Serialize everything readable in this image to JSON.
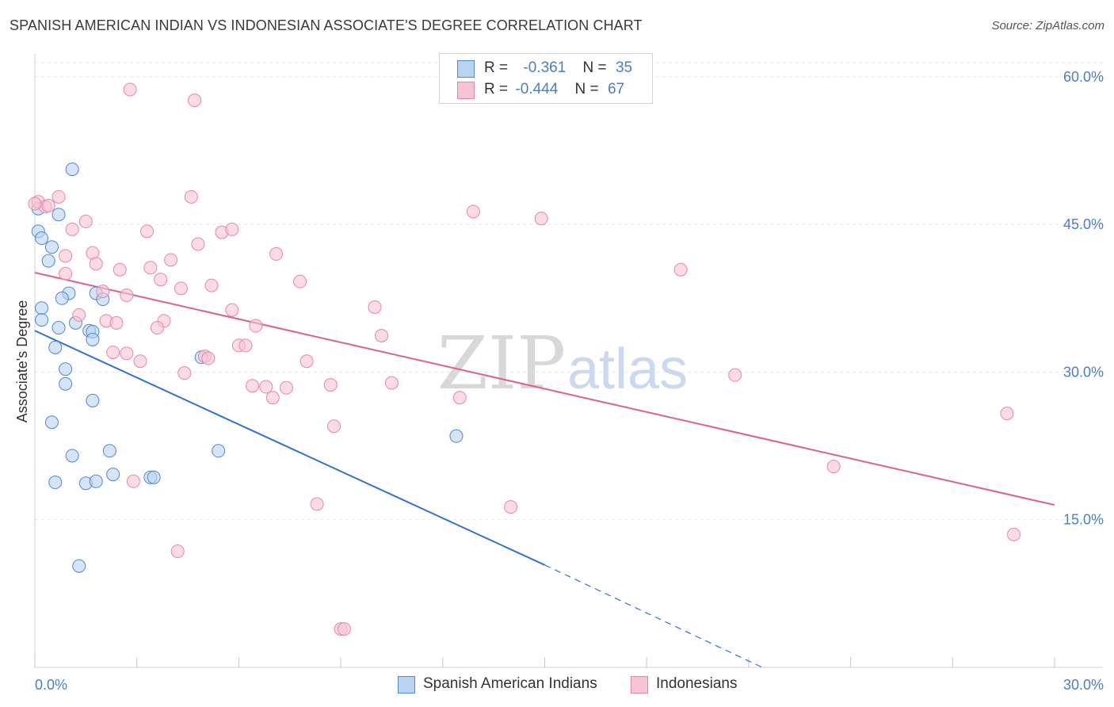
{
  "title": "SPANISH AMERICAN INDIAN VS INDONESIAN ASSOCIATE'S DEGREE CORRELATION CHART",
  "source": "Source: ZipAtlas.com",
  "watermark": {
    "zip": "ZIP",
    "atlas": "atlas"
  },
  "legend_top": [
    {
      "r_label": "R =",
      "r_value": "-0.361",
      "n_label": "N =",
      "n_value": "35"
    },
    {
      "r_label": "R =",
      "r_value": "-0.444",
      "n_label": "N =",
      "n_value": "67"
    }
  ],
  "colors": {
    "blue_fill": "#b9d3f2",
    "blue_stroke": "#4f8ad6",
    "blue_line": "#2f74d0",
    "pink_fill": "#f8c3d3",
    "pink_stroke": "#e987a8",
    "pink_line": "#e0608c",
    "grid": "#e6e6e6",
    "tick_text": "#4a7fc8"
  },
  "chart_data": {
    "type": "scatter",
    "xlabel": "",
    "ylabel": "Associate's Degree",
    "xlim": [
      0,
      30
    ],
    "ylim": [
      0,
      62
    ],
    "x_tick_labels": [
      "0.0%",
      "30.0%"
    ],
    "y_ticks": [
      15,
      30,
      45,
      60
    ],
    "y_tick_labels": [
      "15.0%",
      "30.0%",
      "45.0%",
      "60.0%"
    ],
    "legend_position": "top-center",
    "grid": true,
    "series": [
      {
        "name": "Spanish American Indians",
        "color": "blue",
        "points": [
          [
            1.1,
            50.6
          ],
          [
            0.1,
            46.6
          ],
          [
            0.7,
            46.0
          ],
          [
            0.1,
            44.3
          ],
          [
            0.2,
            43.6
          ],
          [
            0.5,
            42.7
          ],
          [
            0.4,
            41.3
          ],
          [
            1.0,
            38.0
          ],
          [
            1.8,
            38.0
          ],
          [
            0.8,
            37.5
          ],
          [
            2.0,
            37.4
          ],
          [
            0.2,
            36.5
          ],
          [
            0.2,
            35.3
          ],
          [
            1.2,
            35.0
          ],
          [
            0.7,
            34.5
          ],
          [
            1.6,
            34.2
          ],
          [
            1.7,
            34.1
          ],
          [
            1.7,
            33.3
          ],
          [
            0.6,
            32.5
          ],
          [
            4.9,
            31.5
          ],
          [
            0.9,
            30.3
          ],
          [
            0.9,
            28.8
          ],
          [
            1.7,
            27.1
          ],
          [
            0.5,
            24.9
          ],
          [
            12.4,
            23.5
          ],
          [
            2.2,
            22.0
          ],
          [
            5.4,
            22.0
          ],
          [
            1.1,
            21.5
          ],
          [
            2.3,
            19.6
          ],
          [
            3.4,
            19.3
          ],
          [
            3.5,
            19.3
          ],
          [
            0.6,
            18.8
          ],
          [
            1.5,
            18.7
          ],
          [
            1.8,
            18.9
          ],
          [
            1.3,
            10.3
          ]
        ],
        "trend": {
          "x": [
            0,
            15
          ],
          "y": [
            34.2,
            10.4
          ]
        },
        "trend_extension": {
          "x": [
            15,
            21.4
          ],
          "y": [
            10.4,
            0.0
          ]
        }
      },
      {
        "name": "Indonesians",
        "color": "pink",
        "points": [
          [
            2.8,
            58.7
          ],
          [
            4.7,
            57.6
          ],
          [
            0.1,
            47.3
          ],
          [
            4.6,
            47.8
          ],
          [
            0.3,
            46.8
          ],
          [
            0.7,
            47.8
          ],
          [
            0.4,
            46.9
          ],
          [
            12.9,
            46.3
          ],
          [
            14.9,
            45.6
          ],
          [
            1.5,
            45.3
          ],
          [
            1.1,
            44.5
          ],
          [
            3.3,
            44.3
          ],
          [
            5.5,
            44.2
          ],
          [
            5.8,
            44.5
          ],
          [
            4.8,
            43.0
          ],
          [
            7.1,
            42.0
          ],
          [
            0.9,
            41.8
          ],
          [
            1.7,
            42.1
          ],
          [
            4.0,
            41.4
          ],
          [
            1.8,
            41.0
          ],
          [
            3.4,
            40.6
          ],
          [
            2.5,
            40.4
          ],
          [
            19.0,
            40.4
          ],
          [
            0.9,
            40.0
          ],
          [
            3.7,
            39.4
          ],
          [
            7.8,
            39.2
          ],
          [
            5.2,
            38.8
          ],
          [
            4.3,
            38.5
          ],
          [
            2.0,
            38.2
          ],
          [
            2.7,
            37.8
          ],
          [
            10.0,
            36.6
          ],
          [
            5.8,
            36.3
          ],
          [
            1.3,
            35.8
          ],
          [
            2.1,
            35.2
          ],
          [
            3.8,
            35.2
          ],
          [
            2.4,
            35.0
          ],
          [
            6.5,
            34.7
          ],
          [
            3.6,
            34.5
          ],
          [
            10.2,
            33.7
          ],
          [
            6.0,
            32.7
          ],
          [
            6.2,
            32.7
          ],
          [
            2.7,
            31.9
          ],
          [
            2.3,
            32.0
          ],
          [
            5.0,
            31.6
          ],
          [
            5.1,
            31.4
          ],
          [
            3.1,
            31.1
          ],
          [
            8.0,
            31.1
          ],
          [
            4.4,
            29.9
          ],
          [
            20.6,
            29.7
          ],
          [
            10.5,
            28.9
          ],
          [
            6.4,
            28.6
          ],
          [
            8.7,
            28.7
          ],
          [
            6.8,
            28.5
          ],
          [
            7.4,
            28.4
          ],
          [
            7.0,
            27.4
          ],
          [
            12.5,
            27.4
          ],
          [
            28.6,
            25.8
          ],
          [
            8.8,
            24.5
          ],
          [
            2.9,
            18.9
          ],
          [
            23.5,
            20.4
          ],
          [
            8.3,
            16.6
          ],
          [
            14.0,
            16.3
          ],
          [
            28.8,
            13.5
          ],
          [
            4.2,
            11.8
          ],
          [
            9.0,
            3.9
          ],
          [
            9.1,
            3.9
          ],
          [
            0.0,
            47.1
          ]
        ],
        "trend": {
          "x": [
            0,
            30
          ],
          "y": [
            40.1,
            16.5
          ]
        }
      }
    ]
  }
}
